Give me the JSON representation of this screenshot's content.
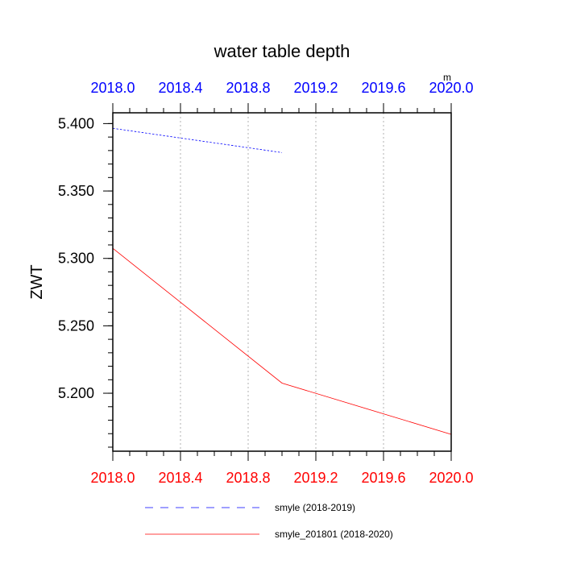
{
  "chart_data": {
    "type": "line",
    "title": "water table depth",
    "units_label": "m",
    "ylabel": "ZWT",
    "xlabel": "",
    "ylim": [
      5.157,
      5.408
    ],
    "y_ticks": [
      5.2,
      5.25,
      5.3,
      5.35,
      5.4
    ],
    "y_tick_labels": [
      "5.200",
      "5.250",
      "5.300",
      "5.350",
      "5.400"
    ],
    "bottom_axis": {
      "xlim": [
        2018.0,
        2020.0
      ],
      "ticks": [
        2018.0,
        2018.4,
        2018.8,
        2019.2,
        2019.6,
        2020.0
      ],
      "tick_labels": [
        "2018.0",
        "2018.4",
        "2018.8",
        "2019.2",
        "2019.6",
        "2020.0"
      ],
      "color": "#ff0000"
    },
    "top_axis": {
      "xlim": [
        2018.0,
        2020.0
      ],
      "ticks": [
        2018.0,
        2018.4,
        2018.8,
        2019.2,
        2019.6,
        2020.0
      ],
      "tick_labels": [
        "2018.0",
        "2018.4",
        "2018.8",
        "2019.2",
        "2019.6",
        "2020.0"
      ],
      "color": "#0000ff"
    },
    "grid": true,
    "legend_position": "bottom",
    "series": [
      {
        "name": "smyle (2018-2019)",
        "axis": "top",
        "color": "#0000ff",
        "dash": "dashed",
        "x": [
          2018.0,
          2019.0
        ],
        "values": [
          5.3965,
          5.3785
        ]
      },
      {
        "name": "smyle_201801 (2018-2020)",
        "axis": "bottom",
        "color": "#ff0000",
        "dash": "solid",
        "x": [
          2018.0,
          2019.0,
          2020.0
        ],
        "values": [
          5.3075,
          5.2075,
          5.1695
        ]
      }
    ]
  }
}
